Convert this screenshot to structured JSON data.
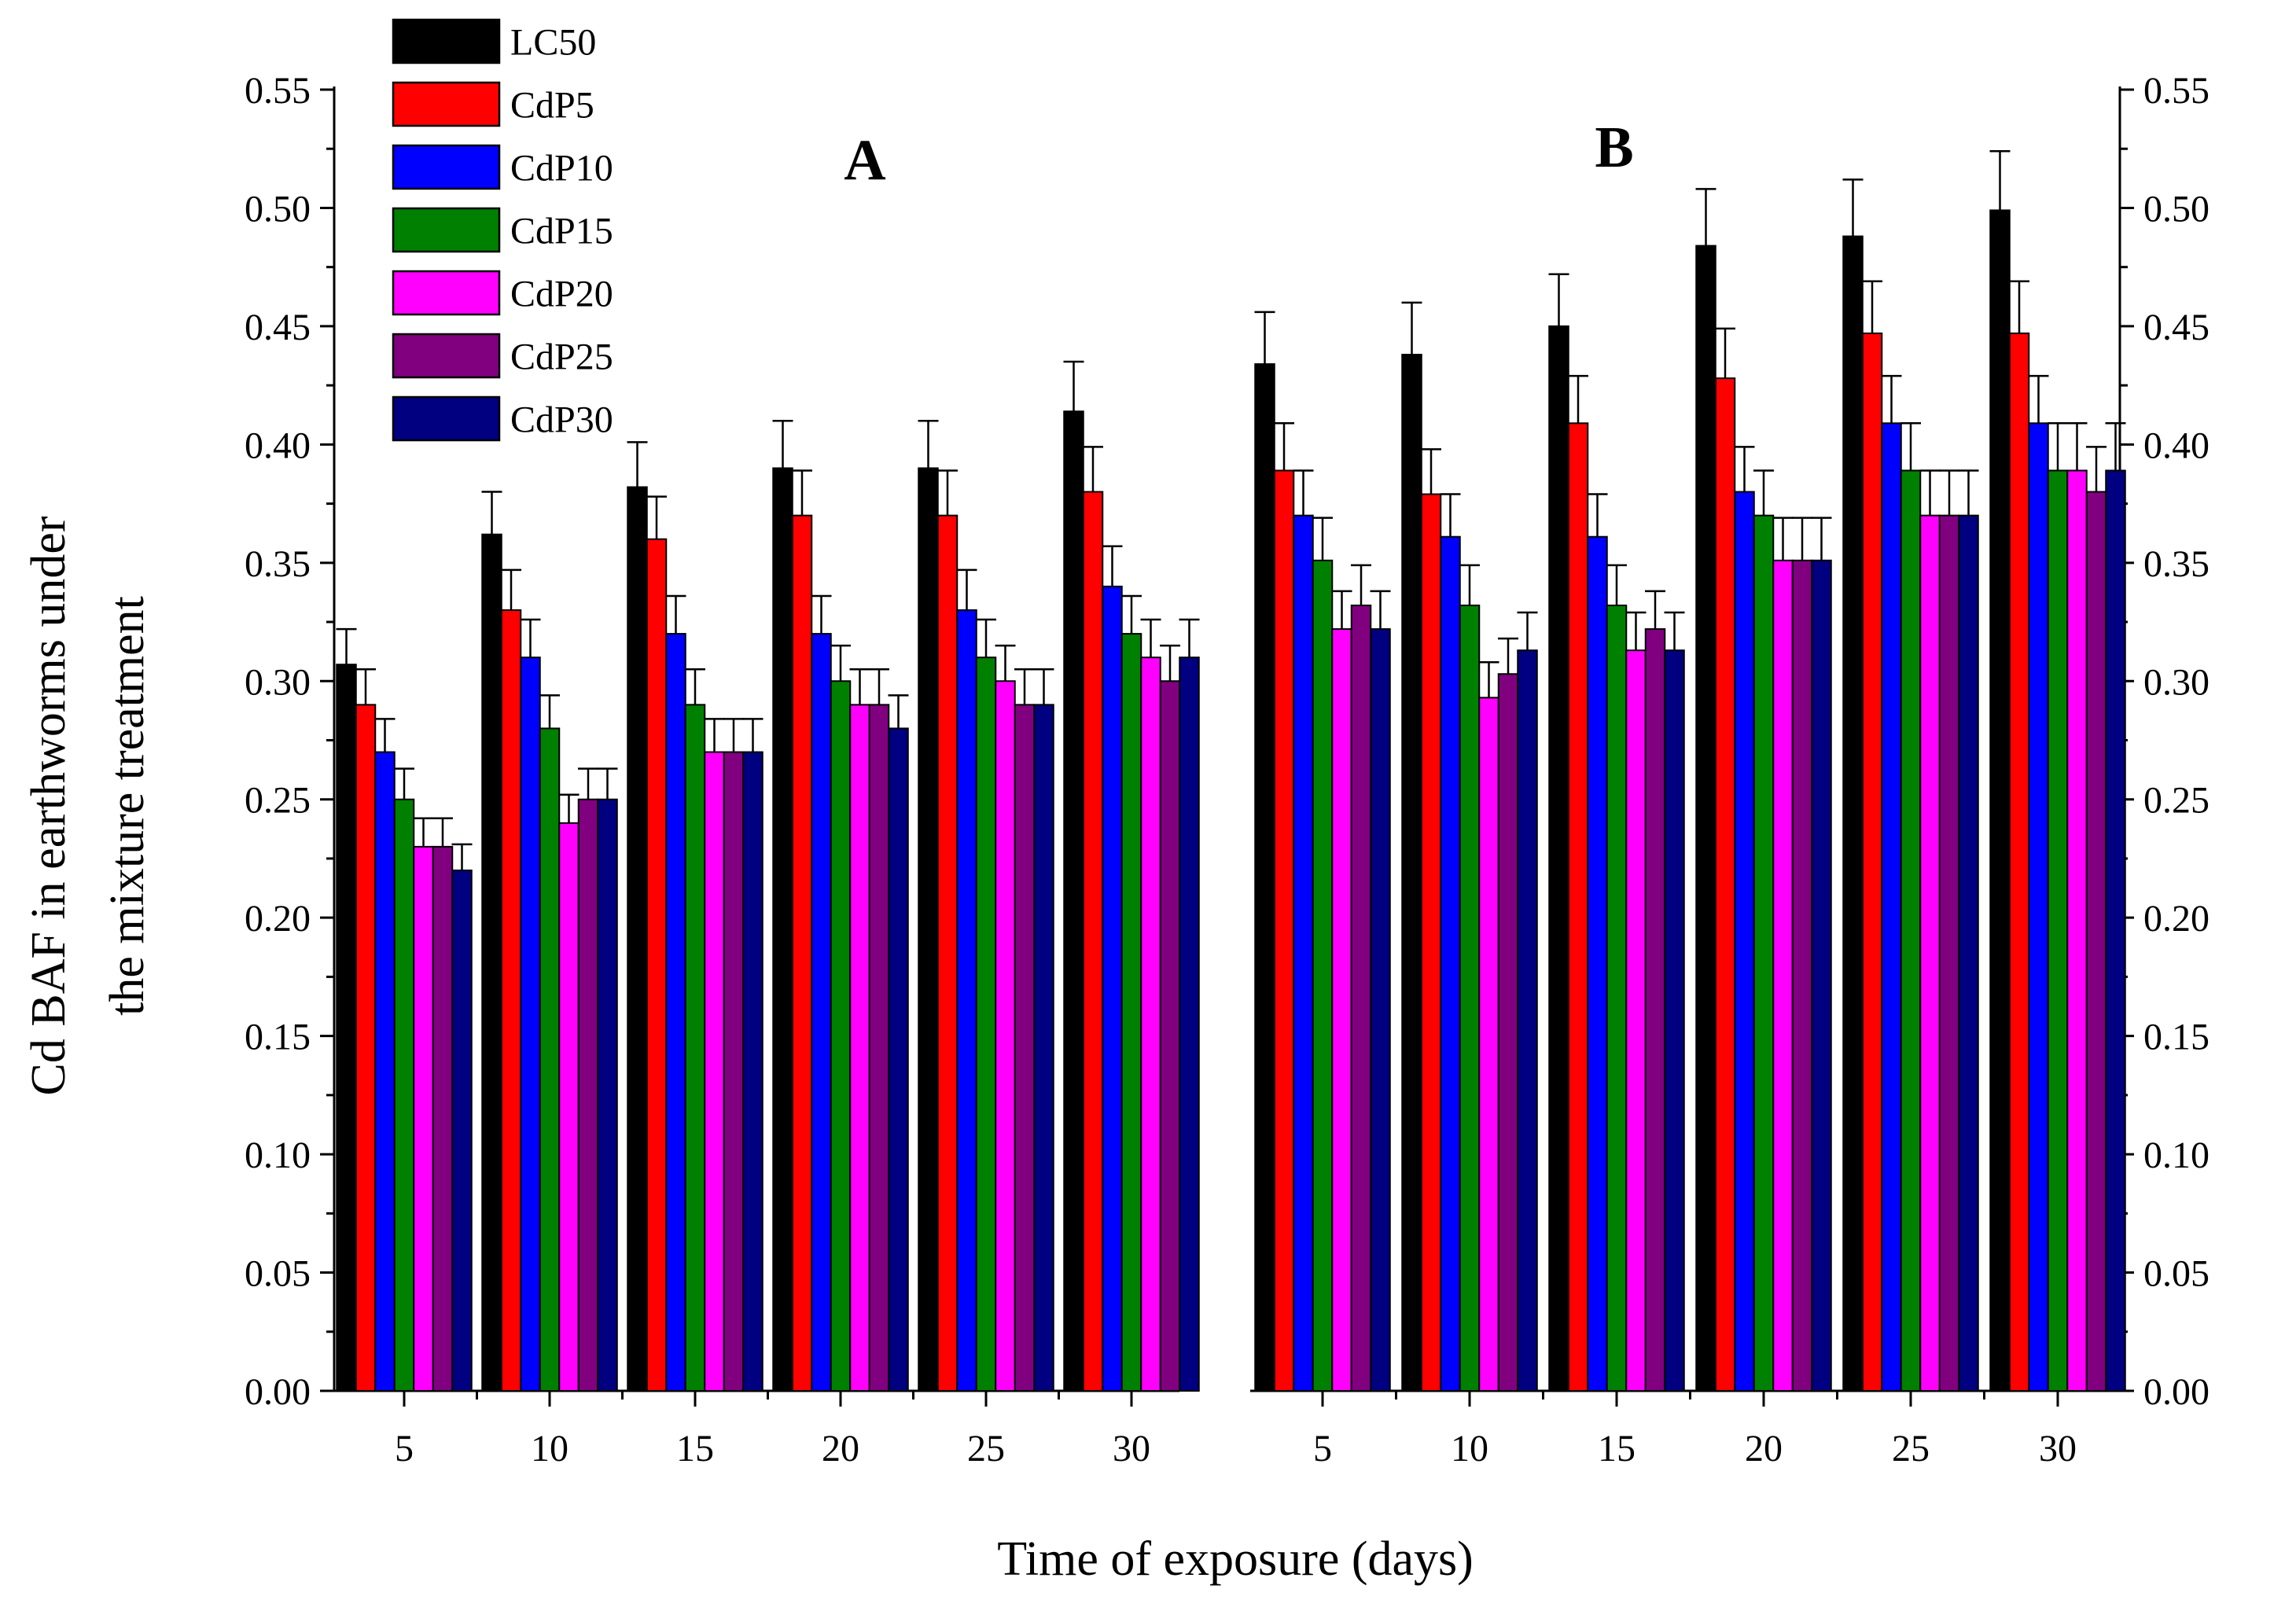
{
  "chart_data": {
    "type": "bar",
    "xlabel": "Time of exposure (days)",
    "ylabel_line1": "Cd BAF in earthworms under",
    "ylabel_line2": "the mixture treatment",
    "ylim": [
      0,
      0.55
    ],
    "yticks": [
      "0.00",
      "0.05",
      "0.10",
      "0.15",
      "0.20",
      "0.25",
      "0.30",
      "0.35",
      "0.40",
      "0.45",
      "0.50",
      "0.55"
    ],
    "categories": [
      "5",
      "10",
      "15",
      "20",
      "25",
      "30"
    ],
    "legend_position": "top-left",
    "series_styles": [
      {
        "name": "LC50",
        "color": "#000000"
      },
      {
        "name": "CdP5",
        "color": "#ff0000"
      },
      {
        "name": "CdP10",
        "color": "#0000ff"
      },
      {
        "name": "CdP15",
        "color": "#008000"
      },
      {
        "name": "CdP20",
        "color": "#ff00ff"
      },
      {
        "name": "CdP25",
        "color": "#800080"
      },
      {
        "name": "CdP30",
        "color": "#000080"
      }
    ],
    "panels": [
      {
        "label": "A",
        "series": [
          {
            "name": "LC50",
            "values": [
              0.307,
              0.362,
              0.382,
              0.39,
              0.39,
              0.414
            ],
            "errors": [
              0.015,
              0.018,
              0.019,
              0.02,
              0.02,
              0.021
            ]
          },
          {
            "name": "CdP5",
            "values": [
              0.29,
              0.33,
              0.36,
              0.37,
              0.37,
              0.38
            ],
            "errors": [
              0.015,
              0.017,
              0.018,
              0.019,
              0.019,
              0.019
            ]
          },
          {
            "name": "CdP10",
            "values": [
              0.27,
              0.31,
              0.32,
              0.32,
              0.33,
              0.34
            ],
            "errors": [
              0.014,
              0.016,
              0.016,
              0.016,
              0.017,
              0.017
            ]
          },
          {
            "name": "CdP15",
            "values": [
              0.25,
              0.28,
              0.29,
              0.3,
              0.31,
              0.32
            ],
            "errors": [
              0.013,
              0.014,
              0.015,
              0.015,
              0.016,
              0.016
            ]
          },
          {
            "name": "CdP20",
            "values": [
              0.23,
              0.24,
              0.27,
              0.29,
              0.3,
              0.31
            ],
            "errors": [
              0.012,
              0.012,
              0.014,
              0.015,
              0.015,
              0.016
            ]
          },
          {
            "name": "CdP25",
            "values": [
              0.23,
              0.25,
              0.27,
              0.29,
              0.29,
              0.3
            ],
            "errors": [
              0.012,
              0.013,
              0.014,
              0.015,
              0.015,
              0.015
            ]
          },
          {
            "name": "CdP30",
            "values": [
              0.22,
              0.25,
              0.27,
              0.28,
              0.29,
              0.31
            ],
            "errors": [
              0.011,
              0.013,
              0.014,
              0.014,
              0.015,
              0.016
            ]
          }
        ]
      },
      {
        "label": "B",
        "series": [
          {
            "name": "LC50",
            "values": [
              0.434,
              0.438,
              0.45,
              0.484,
              0.488,
              0.499
            ],
            "errors": [
              0.022,
              0.022,
              0.022,
              0.024,
              0.024,
              0.025
            ]
          },
          {
            "name": "CdP5",
            "values": [
              0.389,
              0.379,
              0.409,
              0.428,
              0.447,
              0.447
            ],
            "errors": [
              0.02,
              0.019,
              0.02,
              0.021,
              0.022,
              0.022
            ]
          },
          {
            "name": "CdP10",
            "values": [
              0.37,
              0.361,
              0.361,
              0.38,
              0.409,
              0.409
            ],
            "errors": [
              0.019,
              0.018,
              0.018,
              0.019,
              0.02,
              0.02
            ]
          },
          {
            "name": "CdP15",
            "values": [
              0.351,
              0.332,
              0.332,
              0.37,
              0.389,
              0.389
            ],
            "errors": [
              0.018,
              0.017,
              0.017,
              0.019,
              0.02,
              0.02
            ]
          },
          {
            "name": "CdP20",
            "values": [
              0.322,
              0.293,
              0.313,
              0.351,
              0.37,
              0.389
            ],
            "errors": [
              0.016,
              0.015,
              0.016,
              0.018,
              0.019,
              0.02
            ]
          },
          {
            "name": "CdP25",
            "values": [
              0.332,
              0.303,
              0.322,
              0.351,
              0.37,
              0.38
            ],
            "errors": [
              0.017,
              0.015,
              0.016,
              0.018,
              0.019,
              0.019
            ]
          },
          {
            "name": "CdP30",
            "values": [
              0.322,
              0.313,
              0.313,
              0.351,
              0.37,
              0.389
            ],
            "errors": [
              0.016,
              0.016,
              0.016,
              0.018,
              0.019,
              0.02
            ]
          }
        ]
      }
    ]
  }
}
